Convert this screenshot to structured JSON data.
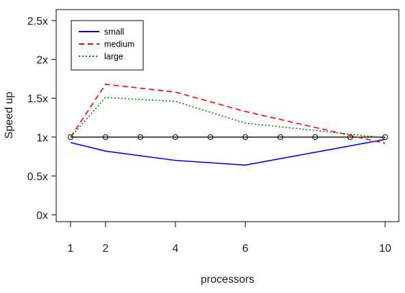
{
  "chart_data": {
    "type": "line",
    "title": "",
    "xlabel": "processors",
    "ylabel": "Speed up",
    "xlim": [
      1,
      10
    ],
    "ylim": [
      0,
      2.5
    ],
    "x_ticks": [
      1,
      2,
      4,
      6,
      10
    ],
    "x_tick_labels": [
      "1",
      "2",
      "4",
      "6",
      "10"
    ],
    "y_ticks": [
      0,
      0.5,
      1,
      1.5,
      2,
      2.5
    ],
    "y_tick_labels": [
      "0x",
      "0.5x",
      "1x",
      "1.5x",
      "2x",
      "2.5x"
    ],
    "grid": false,
    "legend": {
      "position": "top-left"
    },
    "series": [
      {
        "name": "small",
        "color": "#0000ff",
        "style": "solid",
        "x": [
          1,
          2,
          4,
          6,
          10
        ],
        "y": [
          0.93,
          0.82,
          0.7,
          0.64,
          0.97
        ]
      },
      {
        "name": "medium",
        "color": "#ff0000",
        "style": "dashed",
        "x": [
          1,
          2,
          4,
          6,
          10
        ],
        "y": [
          1.0,
          1.68,
          1.58,
          1.33,
          0.92
        ]
      },
      {
        "name": "large",
        "color": "#008000",
        "style": "dotted",
        "x": [
          1,
          2,
          4,
          6,
          10
        ],
        "y": [
          1.0,
          1.51,
          1.46,
          1.18,
          0.99
        ]
      }
    ],
    "reference": {
      "color": "#000000",
      "x": [
        1,
        2,
        3,
        4,
        5,
        6,
        7,
        8,
        9,
        10
      ],
      "y": [
        1,
        1,
        1,
        1,
        1,
        1,
        1,
        1,
        1,
        1
      ]
    }
  }
}
